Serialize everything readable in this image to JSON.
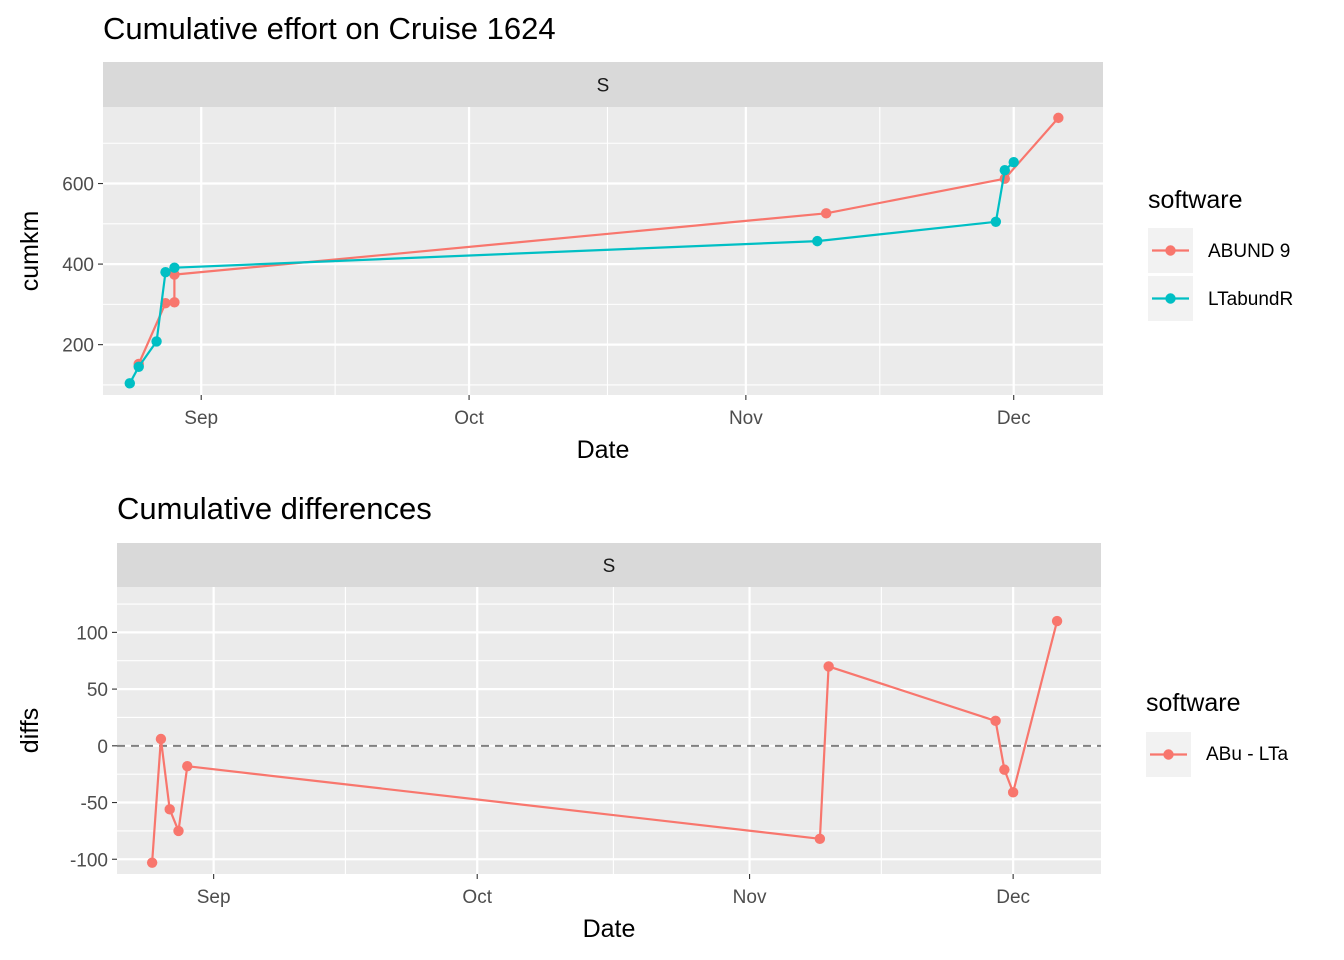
{
  "chart_data": [
    {
      "type": "line",
      "title": "Cumulative effort on Cruise 1624",
      "facet": "S",
      "xlabel": "Date",
      "ylabel": "cumkm",
      "x_ticks": [
        "Sep",
        "Oct",
        "Nov",
        "Dec"
      ],
      "y_ticks": [
        200,
        400,
        600
      ],
      "xlim": [
        "2016-08-21",
        "2016-12-11"
      ],
      "ylim": [
        75,
        790
      ],
      "legend": {
        "title": "software",
        "placement": "right"
      },
      "series": [
        {
          "name": "ABUND 9",
          "color": "#F8766D",
          "points": [
            {
              "x": "2016-08-25",
              "y": 152
            },
            {
              "x": "2016-08-28",
              "y": 303
            },
            {
              "x": "2016-08-29",
              "y": 305
            },
            {
              "x": "2016-08-29",
              "y": 374
            },
            {
              "x": "2016-11-10",
              "y": 526
            },
            {
              "x": "2016-11-30",
              "y": 612
            },
            {
              "x": "2016-12-06",
              "y": 763
            }
          ]
        },
        {
          "name": "LTabundR",
          "color": "#00BFC4",
          "points": [
            {
              "x": "2016-08-24",
              "y": 104
            },
            {
              "x": "2016-08-25",
              "y": 145
            },
            {
              "x": "2016-08-27",
              "y": 208
            },
            {
              "x": "2016-08-28",
              "y": 380
            },
            {
              "x": "2016-08-29",
              "y": 391
            },
            {
              "x": "2016-11-09",
              "y": 457
            },
            {
              "x": "2016-11-29",
              "y": 505
            },
            {
              "x": "2016-11-30",
              "y": 633
            },
            {
              "x": "2016-12-01",
              "y": 653
            }
          ]
        }
      ]
    },
    {
      "type": "line",
      "title": "Cumulative differences",
      "facet": "S",
      "xlabel": "Date",
      "ylabel": "diffs",
      "x_ticks": [
        "Sep",
        "Oct",
        "Nov",
        "Dec"
      ],
      "y_ticks": [
        100,
        50,
        0,
        -50,
        -100
      ],
      "xlim": [
        "2016-08-21",
        "2016-12-11"
      ],
      "ylim": [
        -113,
        140
      ],
      "reference_line": 0,
      "legend": {
        "title": "software",
        "placement": "right"
      },
      "series": [
        {
          "name": "ABu - LTa",
          "color": "#F8766D",
          "points": [
            {
              "x": "2016-08-25",
              "y": -103
            },
            {
              "x": "2016-08-26",
              "y": 6
            },
            {
              "x": "2016-08-27",
              "y": -56
            },
            {
              "x": "2016-08-28",
              "y": -75
            },
            {
              "x": "2016-08-29",
              "y": -18
            },
            {
              "x": "2016-11-09",
              "y": -82
            },
            {
              "x": "2016-11-10",
              "y": 70
            },
            {
              "x": "2016-11-29",
              "y": 22
            },
            {
              "x": "2016-11-30",
              "y": -21
            },
            {
              "x": "2016-12-01",
              "y": -41
            },
            {
              "x": "2016-12-06",
              "y": 110
            }
          ]
        }
      ]
    }
  ]
}
